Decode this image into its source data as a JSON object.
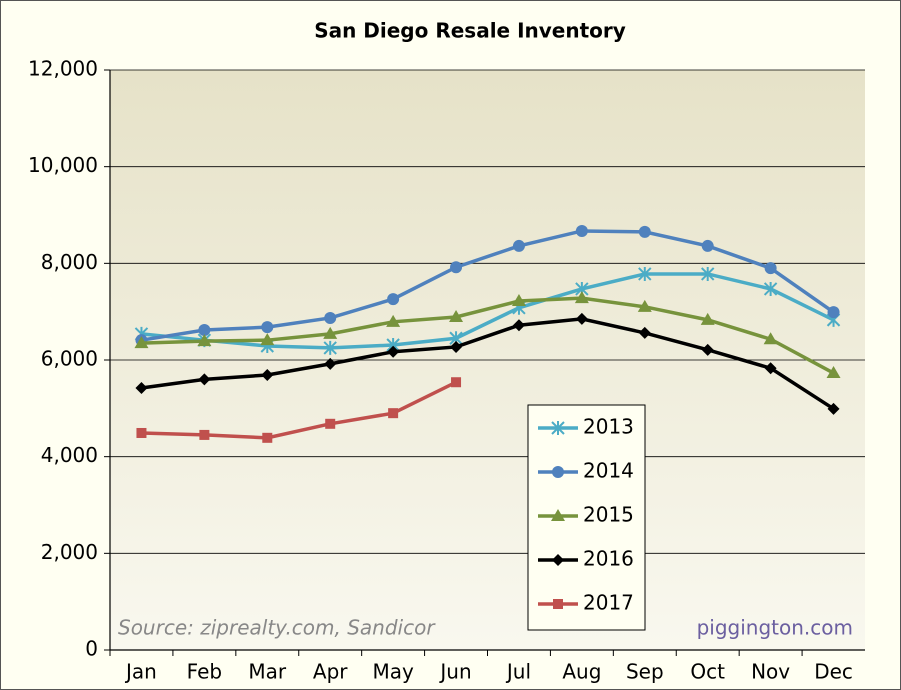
{
  "chart_data": {
    "type": "line",
    "title": "San Diego Resale Inventory",
    "categories": [
      "Jan",
      "Feb",
      "Mar",
      "Apr",
      "May",
      "Jun",
      "Jul",
      "Aug",
      "Sep",
      "Oct",
      "Nov",
      "Dec"
    ],
    "series": [
      {
        "name": "2013",
        "color": "#4bacc6",
        "marker": "asterisk",
        "values": [
          6540,
          6410,
          6290,
          6250,
          6310,
          6450,
          7080,
          7470,
          7780,
          7780,
          7470,
          6830
        ]
      },
      {
        "name": "2014",
        "color": "#4f81bd",
        "marker": "circle",
        "values": [
          6410,
          6620,
          6680,
          6870,
          7260,
          7920,
          8360,
          8670,
          8650,
          8360,
          7900,
          6990
        ]
      },
      {
        "name": "2015",
        "color": "#77933c",
        "marker": "triangle",
        "values": [
          6350,
          6390,
          6410,
          6540,
          6790,
          6890,
          7220,
          7280,
          7100,
          6830,
          6430,
          5730
        ]
      },
      {
        "name": "2016",
        "color": "#000000",
        "marker": "diamond",
        "values": [
          5420,
          5600,
          5690,
          5920,
          6170,
          6270,
          6720,
          6850,
          6560,
          6210,
          5830,
          4990
        ]
      },
      {
        "name": "2017",
        "color": "#c0504d",
        "marker": "square",
        "values": [
          4490,
          4450,
          4390,
          4680,
          4900,
          5540,
          null,
          null,
          null,
          null,
          null,
          null
        ]
      }
    ],
    "ylim": [
      0,
      12000
    ],
    "yticks": [
      0,
      {
        "value": 2000,
        "label": "2,000"
      },
      {
        "value": 4000,
        "label": "4,000"
      },
      {
        "value": 6000,
        "label": "6,000"
      },
      {
        "value": 8000,
        "label": "8,000"
      },
      {
        "value": 10000,
        "label": "10,000"
      },
      {
        "value": 12000,
        "label": "12,000"
      }
    ],
    "grid": true,
    "annotations": [
      "Source: ziprealty.com, Sandicor",
      "piggington.com"
    ]
  }
}
